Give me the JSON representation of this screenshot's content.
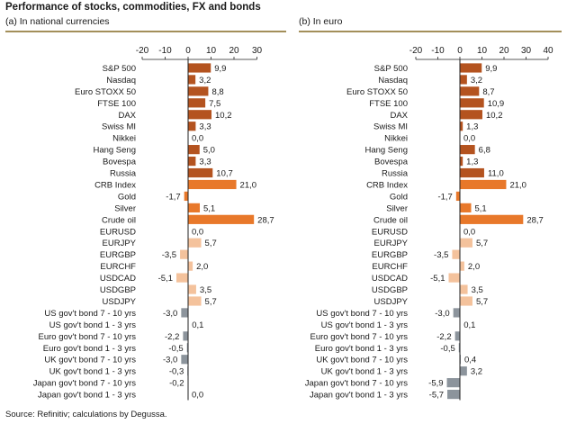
{
  "title": "Performance of stocks, commodities, FX and bonds",
  "source": "Source: Refinitiv; calculations by Degussa.",
  "colors": {
    "stocks": "#b4531f",
    "commodities": "#e8782a",
    "fx": "#f4c29c",
    "bonds": "#8c949c",
    "axis": "#222222",
    "rule": "#a38f5a"
  },
  "chart_data": [
    {
      "type": "bar",
      "orientation": "horizontal",
      "title": "(a) In national currencies",
      "xlim": [
        -20,
        30
      ],
      "ticks": [
        -20,
        -10,
        0,
        10,
        20,
        30
      ],
      "categories": [
        "S&P 500",
        "Nasdaq",
        "Euro STOXX 50",
        "FTSE 100",
        "DAX",
        "Swiss MI",
        "Nikkei",
        "Hang Seng",
        "Bovespa",
        "Russia",
        "CRB Index",
        "Gold",
        "Silver",
        "Crude oil",
        "EURUSD",
        "EURJPY",
        "EURGBP",
        "EURCHF",
        "USDCAD",
        "USDGBP",
        "USDJPY",
        "US gov't bond 7 - 10 yrs",
        "US gov't bond 1 - 3 yrs",
        "Euro gov't bond 7 - 10 yrs",
        "Euro gov't bond 1 - 3 yrs",
        "UK gov't bond 7 - 10 yrs",
        "UK gov't bond 1 - 3 yrs",
        "Japan gov't bond 7 - 10 yrs",
        "Japan gov't bond 1 - 3 yrs"
      ],
      "values": [
        9.9,
        3.2,
        8.8,
        7.5,
        10.2,
        3.3,
        0.0,
        5.0,
        3.3,
        10.7,
        21.0,
        -1.7,
        5.1,
        28.7,
        0.0,
        5.7,
        -3.5,
        2.0,
        -5.1,
        3.5,
        5.7,
        -3.0,
        0.1,
        -2.2,
        -0.5,
        -3.0,
        -0.3,
        -0.2,
        0.0
      ],
      "value_labels": [
        "9,9",
        "3,2",
        "8,8",
        "7,5",
        "10,2",
        "3,3",
        "0,0",
        "5,0",
        "3,3",
        "10,7",
        "21,0",
        "-1,7",
        "5,1",
        "28,7",
        "0,0",
        "5,7",
        "-3,5",
        "2,0",
        "-5,1",
        "3,5",
        "5,7",
        "-3,0",
        "0,1",
        "-2,2",
        "-0,5",
        "-3,0",
        "-0,3",
        "-0,2",
        "0,0"
      ],
      "groups": [
        "stocks",
        "stocks",
        "stocks",
        "stocks",
        "stocks",
        "stocks",
        "stocks",
        "stocks",
        "stocks",
        "stocks",
        "commodities",
        "commodities",
        "commodities",
        "commodities",
        "fx",
        "fx",
        "fx",
        "fx",
        "fx",
        "fx",
        "fx",
        "bonds",
        "bonds",
        "bonds",
        "bonds",
        "bonds",
        "bonds",
        "bonds",
        "bonds"
      ]
    },
    {
      "type": "bar",
      "orientation": "horizontal",
      "title": "(b) In euro",
      "xlim": [
        -20,
        40
      ],
      "ticks": [
        -20,
        -10,
        0,
        10,
        20,
        30,
        40
      ],
      "categories": [
        "S&P 500",
        "Nasdaq",
        "Euro STOXX 50",
        "FTSE 100",
        "DAX",
        "Swiss MI",
        "Nikkei",
        "Hang Seng",
        "Bovespa",
        "Russia",
        "CRB Index",
        "Gold",
        "Silver",
        "Crude oil",
        "EURUSD",
        "EURJPY",
        "EURGBP",
        "EURCHF",
        "USDCAD",
        "USDGBP",
        "USDJPY",
        "US gov't bond 7 - 10 yrs",
        "US gov't bond 1 - 3 yrs",
        "Euro gov't bond 7 - 10 yrs",
        "Euro gov't bond 1 - 3 yrs",
        "UK gov't bond 7 - 10 yrs",
        "UK gov't bond 1 - 3 yrs",
        "Japan gov't bond 7 - 10 yrs",
        "Japan gov't bond 1 - 3 yrs"
      ],
      "values": [
        9.9,
        3.2,
        8.7,
        10.9,
        10.2,
        1.3,
        0.0,
        6.8,
        1.3,
        11.0,
        21.0,
        -1.7,
        5.1,
        28.7,
        0.0,
        5.7,
        -3.5,
        2.0,
        -5.1,
        3.5,
        5.7,
        -3.0,
        0.1,
        -2.2,
        -0.5,
        0.4,
        3.2,
        -5.9,
        -5.7
      ],
      "value_labels": [
        "9,9",
        "3,2",
        "8,7",
        "10,9",
        "10,2",
        "1,3",
        "0,0",
        "6,8",
        "1,3",
        "11,0",
        "21,0",
        "-1,7",
        "5,1",
        "28,7",
        "0,0",
        "5,7",
        "-3,5",
        "2,0",
        "-5,1",
        "3,5",
        "5,7",
        "-3,0",
        "0,1",
        "-2,2",
        "-0,5",
        "0,4",
        "3,2",
        "-5,9",
        "-5,7"
      ],
      "groups": [
        "stocks",
        "stocks",
        "stocks",
        "stocks",
        "stocks",
        "stocks",
        "stocks",
        "stocks",
        "stocks",
        "stocks",
        "commodities",
        "commodities",
        "commodities",
        "commodities",
        "fx",
        "fx",
        "fx",
        "fx",
        "fx",
        "fx",
        "fx",
        "bonds",
        "bonds",
        "bonds",
        "bonds",
        "bonds",
        "bonds",
        "bonds",
        "bonds"
      ]
    }
  ]
}
